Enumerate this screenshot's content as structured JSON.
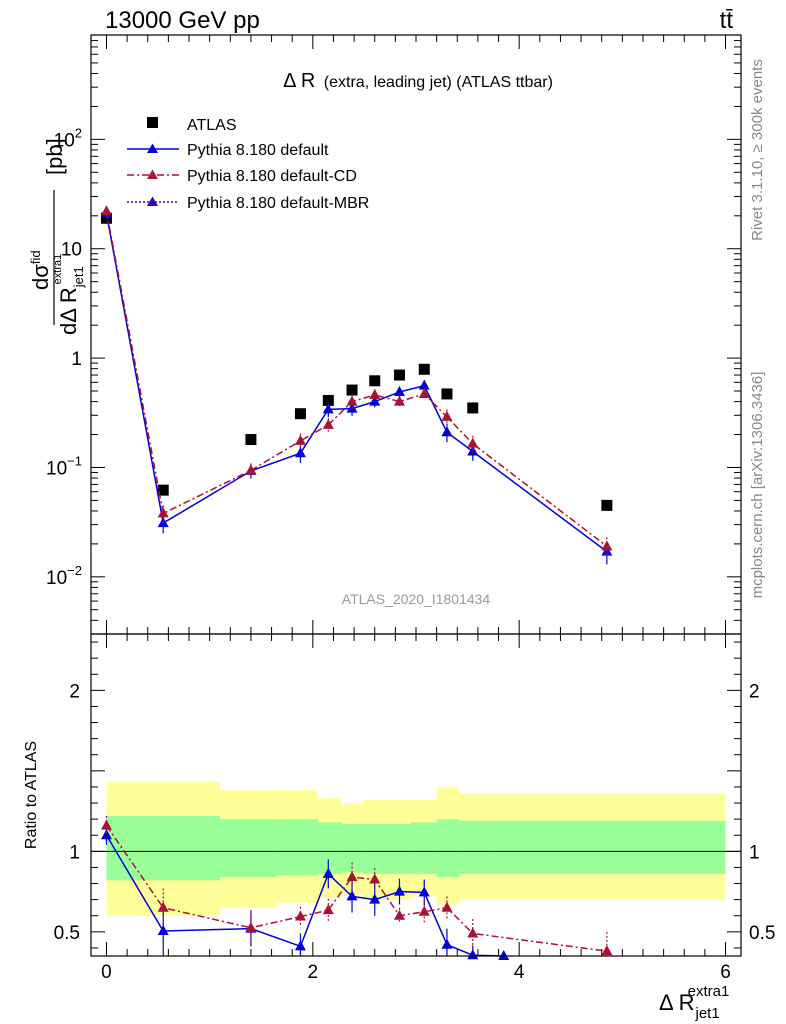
{
  "header": {
    "energy_label": "13000 GeV pp",
    "process_label": "tt̄"
  },
  "side_text": {
    "rivet": "Rivet 3.1.10, ≥ 300k events",
    "site": "mcplots.cern.ch [arXiv:1306.3436]"
  },
  "chart_data": [
    {
      "type": "scatter",
      "panel": "main",
      "title": "Δ R (extra, leading jet) (ATLAS ttbar)",
      "title_main": "Δ R",
      "title_sub": "(extra, leading jet) (ATLAS ttbar)",
      "watermark": "ATLAS_2020_I1801434",
      "ylabel": "dσfid/dΔ R_jet1^extra1 [pb]",
      "ylabel_parts": {
        "d": "d",
        "sigma": "σ",
        "fid": "fid",
        "denom": "dΔ R",
        "sub": "jet1",
        "sup": "extra1",
        "unit": "[pb]"
      },
      "yscale": "log",
      "xlim": [
        -0.15,
        6.15
      ],
      "ylim": [
        0.003,
        900
      ],
      "grid": false,
      "legend_position": "top-left",
      "yticks": [
        {
          "value": 0.01,
          "base": "10",
          "exp": "−2"
        },
        {
          "value": 0.1,
          "base": "10",
          "exp": "−1"
        },
        {
          "value": 1,
          "base": "1",
          "exp": ""
        },
        {
          "value": 10,
          "base": "10",
          "exp": ""
        },
        {
          "value": 100,
          "base": "10",
          "exp": "2"
        }
      ],
      "series": [
        {
          "name": "ATLAS",
          "color": "#000000",
          "marker": "square",
          "x": [
            0.0,
            0.55,
            1.4,
            1.88,
            2.15,
            2.38,
            2.6,
            2.84,
            3.08,
            3.3,
            3.55,
            4.85
          ],
          "y": [
            19,
            0.062,
            0.18,
            0.31,
            0.41,
            0.51,
            0.62,
            0.7,
            0.79,
            0.47,
            0.35,
            0.045
          ]
        },
        {
          "name": "Pythia 8.180 default",
          "color": "#0000dd",
          "marker": "triangle",
          "line": "solid",
          "x": [
            0.0,
            0.55,
            1.4,
            1.88,
            2.15,
            2.38,
            2.6,
            2.84,
            3.08,
            3.3,
            3.55,
            4.85
          ],
          "y": [
            21,
            0.031,
            0.093,
            0.135,
            0.34,
            0.345,
            0.4,
            0.49,
            0.56,
            0.21,
            0.14,
            0.017
          ],
          "yerr": [
            1.2,
            0.006,
            0.014,
            0.025,
            0.05,
            0.05,
            0.045,
            0.06,
            0.07,
            0.04,
            0.025,
            0.004
          ]
        },
        {
          "name": "Pythia 8.180 default-CD",
          "color": "#aa1133",
          "marker": "triangle",
          "line": "dashdot",
          "x": [
            0.0,
            0.55,
            1.4,
            1.88,
            2.15,
            2.38,
            2.6,
            2.84,
            3.08,
            3.3,
            3.55,
            4.85
          ],
          "y": [
            22,
            0.038,
            0.094,
            0.175,
            0.245,
            0.4,
            0.46,
            0.4,
            0.47,
            0.29,
            0.165,
            0.019
          ],
          "yerr": [
            1.3,
            0.007,
            0.015,
            0.03,
            0.04,
            0.06,
            0.06,
            0.05,
            0.06,
            0.05,
            0.03,
            0.004
          ]
        },
        {
          "name": "Pythia 8.180 default-MBR",
          "color": "#3300aa",
          "marker": "triangle",
          "line": "dotted",
          "x": [],
          "y": []
        }
      ]
    },
    {
      "type": "scatter",
      "panel": "ratio",
      "ylabel": "Ratio to ATLAS",
      "xlabel": "Δ R_jet1^extra1",
      "xlabel_parts": {
        "main": "Δ R",
        "sub": "jet1",
        "sup": "extra1"
      },
      "xlim": [
        -0.15,
        6.15
      ],
      "ylim": [
        0.35,
        2.35
      ],
      "xticks": [
        0,
        2,
        4,
        6
      ],
      "yticks": [
        0.5,
        1,
        2
      ],
      "reference_line": 1,
      "bands": {
        "edges": [
          0.0,
          0.35,
          1.1,
          1.65,
          2.05,
          2.28,
          2.48,
          2.72,
          2.95,
          3.2,
          3.42,
          3.7,
          6.0
        ],
        "green_lo": [
          0.82,
          0.82,
          0.84,
          0.85,
          0.86,
          0.87,
          0.86,
          0.86,
          0.86,
          0.84,
          0.86,
          0.86
        ],
        "green_hi": [
          1.22,
          1.22,
          1.2,
          1.2,
          1.18,
          1.17,
          1.17,
          1.17,
          1.18,
          1.2,
          1.19,
          1.19
        ],
        "yellow_lo": [
          0.6,
          0.6,
          0.65,
          0.68,
          0.71,
          0.73,
          0.7,
          0.7,
          0.72,
          0.67,
          0.7,
          0.7
        ],
        "yellow_hi": [
          1.43,
          1.43,
          1.38,
          1.38,
          1.33,
          1.3,
          1.32,
          1.32,
          1.32,
          1.4,
          1.36,
          1.36
        ]
      },
      "series": [
        {
          "name": "Pythia 8.180 default",
          "color": "#0000dd",
          "marker": "triangle",
          "line": "solid",
          "x": [
            0.0,
            0.55,
            1.4,
            1.88,
            2.15,
            2.38,
            2.6,
            2.84,
            3.08,
            3.3,
            3.55,
            3.85
          ],
          "y": [
            1.1,
            0.505,
            0.52,
            0.41,
            0.86,
            0.72,
            0.7,
            0.75,
            0.745,
            0.42,
            0.355,
            0.35
          ],
          "yerr": [
            0.06,
            0.15,
            0.11,
            0.08,
            0.09,
            0.1,
            0.1,
            0.08,
            0.08,
            0.1,
            0.06,
            0.0
          ]
        },
        {
          "name": "Pythia 8.180 default-CD",
          "color": "#aa1133",
          "marker": "triangle",
          "line": "dashdot",
          "x": [
            0.0,
            0.55,
            1.4,
            1.88,
            2.15,
            2.38,
            2.6,
            2.84,
            3.08,
            3.3,
            3.55,
            4.85
          ],
          "y": [
            1.16,
            0.65,
            0.525,
            0.595,
            0.635,
            0.84,
            0.825,
            0.6,
            0.625,
            0.65,
            0.49,
            0.38
          ],
          "yerr": [
            0.06,
            0.12,
            0.11,
            0.06,
            0.07,
            0.09,
            0.07,
            0.05,
            0.07,
            0.07,
            0.09,
            0.12
          ]
        }
      ]
    }
  ]
}
